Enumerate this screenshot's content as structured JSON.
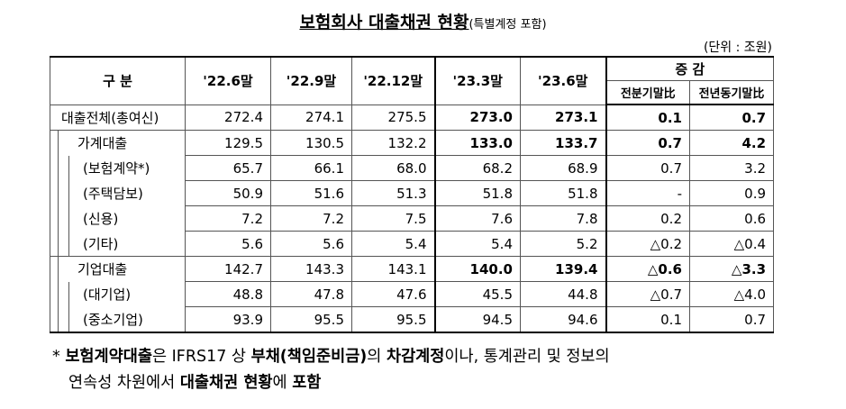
{
  "header": {
    "title": "보험회사 대출채권 현황",
    "subtitle": "(특별계정 포함)",
    "unit": "(단위 : 조원)"
  },
  "table": {
    "columns": [
      "구 분",
      "'22.6말",
      "'22.9말",
      "'22.12말",
      "'23.3말",
      "'23.6말"
    ],
    "group_header": "증 감",
    "group_columns": [
      "전분기말比",
      "전년동기말比"
    ],
    "rows": [
      {
        "label": "대출전체(총여신)",
        "level": 0,
        "bold": true,
        "cells": [
          "272.4",
          "274.1",
          "275.5",
          "273.0",
          "273.1",
          "0.1",
          "0.7"
        ]
      },
      {
        "label": "가계대출",
        "level": 1,
        "bold": true,
        "cells": [
          "129.5",
          "130.5",
          "132.2",
          "133.0",
          "133.7",
          "0.7",
          "4.2"
        ]
      },
      {
        "label": "(보험계약*)",
        "level": 2,
        "bold": false,
        "cells": [
          "65.7",
          "66.1",
          "68.0",
          "68.2",
          "68.9",
          "0.7",
          "3.2"
        ]
      },
      {
        "label": "(주택담보)",
        "level": 2,
        "bold": false,
        "cells": [
          "50.9",
          "51.6",
          "51.3",
          "51.8",
          "51.8",
          "-",
          "0.9"
        ]
      },
      {
        "label": "(신용)",
        "level": 2,
        "bold": false,
        "cells": [
          "7.2",
          "7.2",
          "7.5",
          "7.6",
          "7.8",
          "0.2",
          "0.6"
        ]
      },
      {
        "label": "(기타)",
        "level": 2,
        "bold": false,
        "cells": [
          "5.6",
          "5.6",
          "5.4",
          "5.4",
          "5.2",
          "△0.2",
          "△0.4"
        ]
      },
      {
        "label": "기업대출",
        "level": 1,
        "bold": true,
        "cells": [
          "142.7",
          "143.3",
          "143.1",
          "140.0",
          "139.4",
          "△0.6",
          "△3.3"
        ]
      },
      {
        "label": "(대기업)",
        "level": 2,
        "bold": false,
        "cells": [
          "48.8",
          "47.8",
          "47.6",
          "45.5",
          "44.8",
          "△0.7",
          "△4.0"
        ]
      },
      {
        "label": "(중소기업)",
        "level": 2,
        "bold": false,
        "cells": [
          "93.9",
          "95.5",
          "95.5",
          "94.5",
          "94.6",
          "0.1",
          "0.7"
        ]
      }
    ]
  },
  "footnote": {
    "lines": [
      [
        {
          "text": "* ",
          "bold": false
        },
        {
          "text": "보험계약대출",
          "bold": true
        },
        {
          "text": "은 IFRS17 상 ",
          "bold": false
        },
        {
          "text": "부채(책임준비금)",
          "bold": true
        },
        {
          "text": "의 ",
          "bold": false
        },
        {
          "text": "차감계정",
          "bold": true
        },
        {
          "text": "이나, 통계관리 및 정보의",
          "bold": false
        }
      ],
      [
        {
          "text": "연속성 차원에서 ",
          "bold": false
        },
        {
          "text": "대출채권 현황",
          "bold": true
        },
        {
          "text": "에 ",
          "bold": false
        },
        {
          "text": "포함",
          "bold": true
        }
      ]
    ]
  }
}
